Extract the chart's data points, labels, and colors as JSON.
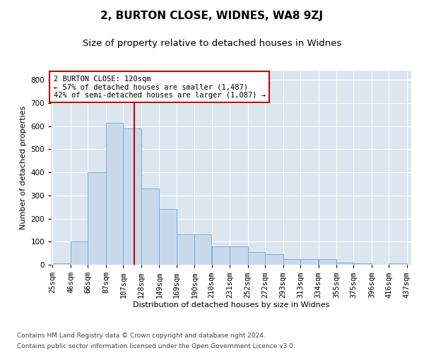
{
  "title": "2, BURTON CLOSE, WIDNES, WA8 9ZJ",
  "subtitle": "Size of property relative to detached houses in Widnes",
  "xlabel": "Distribution of detached houses by size in Widnes",
  "ylabel": "Number of detached properties",
  "footnote1": "Contains HM Land Registry data © Crown copyright and database right 2024.",
  "footnote2": "Contains public sector information licensed under the Open Government Licence v3.0.",
  "annotation_line1": "2 BURTON CLOSE: 120sqm",
  "annotation_line2": "← 57% of detached houses are smaller (1,487)",
  "annotation_line3": "42% of semi-detached houses are larger (1,087) →",
  "bar_color": "#c9d9ec",
  "bar_edge_color": "#7aafd4",
  "vline_color": "#cc0000",
  "vline_x": 120,
  "annotation_box_color": "#ffffff",
  "annotation_box_edge_color": "#cc0000",
  "background_color": "#dce6f0",
  "bins": [
    25,
    46,
    66,
    87,
    107,
    128,
    149,
    169,
    190,
    210,
    231,
    252,
    272,
    293,
    313,
    334,
    355,
    375,
    396,
    416,
    437
  ],
  "counts": [
    5,
    100,
    400,
    615,
    590,
    330,
    240,
    130,
    130,
    80,
    80,
    55,
    45,
    25,
    25,
    25,
    10,
    5,
    0,
    5
  ],
  "ylim": [
    0,
    840
  ],
  "yticks": [
    0,
    100,
    200,
    300,
    400,
    500,
    600,
    700,
    800
  ],
  "title_fontsize": 11,
  "subtitle_fontsize": 9.5,
  "axis_label_fontsize": 8,
  "tick_fontsize": 7.5,
  "annotation_fontsize": 7.5,
  "footnote_fontsize": 6.5,
  "tick_labels": [
    "25sqm",
    "46sqm",
    "66sqm",
    "87sqm",
    "107sqm",
    "128sqm",
    "149sqm",
    "169sqm",
    "190sqm",
    "210sqm",
    "231sqm",
    "252sqm",
    "272sqm",
    "293sqm",
    "313sqm",
    "334sqm",
    "355sqm",
    "375sqm",
    "396sqm",
    "416sqm",
    "437sqm"
  ]
}
